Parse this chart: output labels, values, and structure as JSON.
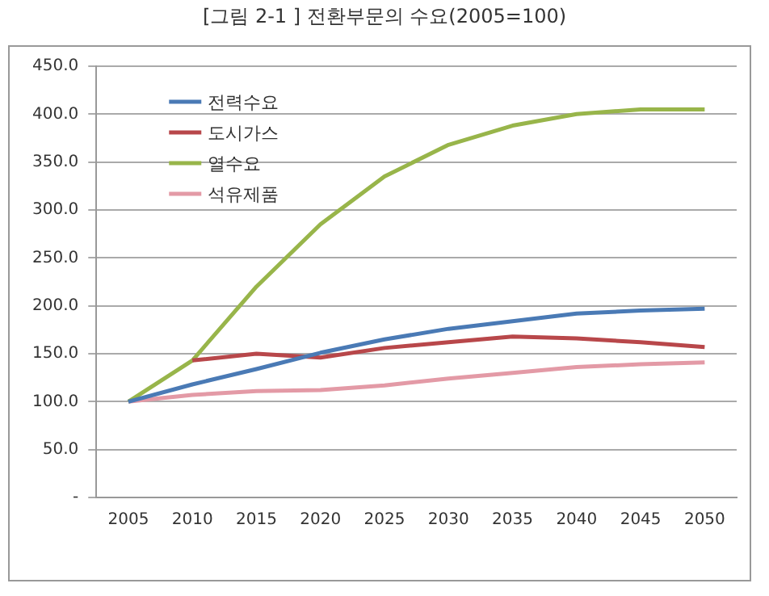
{
  "chart_data": {
    "type": "line",
    "title": "[그림 2-1 ] 전환부문의 수요(2005=100)",
    "categories": [
      "2005",
      "2010",
      "2015",
      "2020",
      "2025",
      "2030",
      "2035",
      "2040",
      "2045",
      "2050"
    ],
    "series": [
      {
        "name": "전력수요",
        "color": "#4a7ab5",
        "values": [
          100,
          118,
          134,
          151,
          165,
          176,
          184,
          192,
          195,
          197
        ]
      },
      {
        "name": "도시가스",
        "color": "#b8474a",
        "values": [
          null,
          143,
          150,
          146,
          156,
          162,
          168,
          166,
          162,
          157
        ]
      },
      {
        "name": "열수요",
        "color": "#98b54a",
        "values": [
          100,
          143,
          220,
          285,
          335,
          368,
          388,
          400,
          405,
          405
        ]
      },
      {
        "name": "석유제품",
        "color": "#e39aa6",
        "values": [
          100,
          107,
          111,
          112,
          117,
          124,
          130,
          136,
          139,
          141
        ]
      }
    ],
    "ylim": [
      0,
      450
    ],
    "yticks": [
      {
        "value": 0,
        "label": "-"
      },
      {
        "value": 50,
        "label": "50.0"
      },
      {
        "value": 100,
        "label": "100.0"
      },
      {
        "value": 150,
        "label": "150.0"
      },
      {
        "value": 200,
        "label": "200.0"
      },
      {
        "value": 250,
        "label": "250.0"
      },
      {
        "value": 300,
        "label": "300.0"
      },
      {
        "value": 350,
        "label": "350.0"
      },
      {
        "value": 400,
        "label": "400.0"
      },
      {
        "value": 450,
        "label": "450.0"
      }
    ],
    "grid": "y",
    "legend": "top left",
    "marker": "none",
    "line_style": "solid"
  }
}
